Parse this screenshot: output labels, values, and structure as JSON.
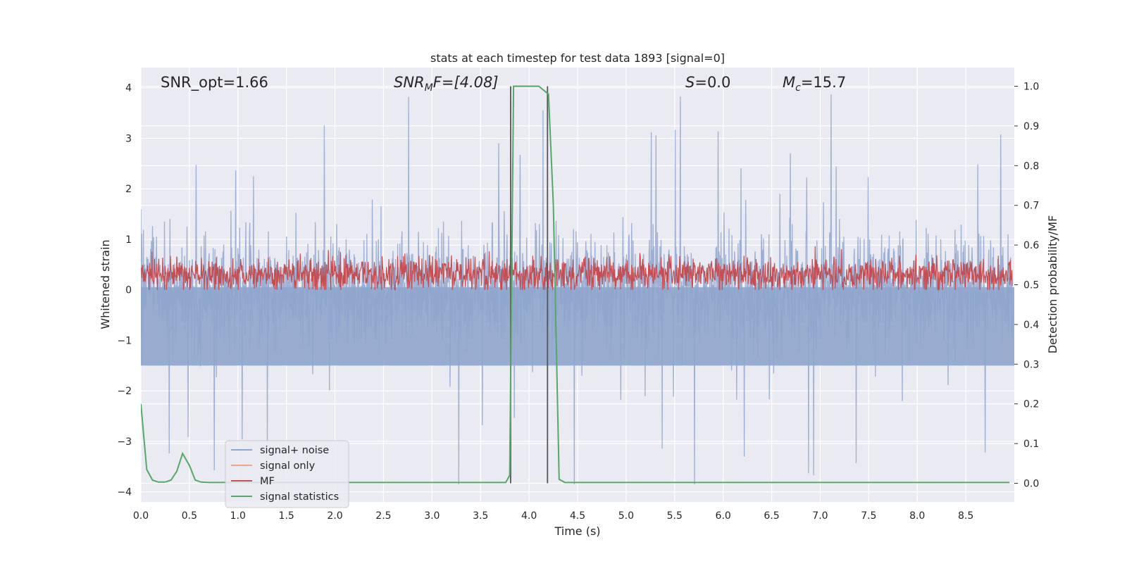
{
  "chart_data": {
    "type": "line",
    "title": "stats at each timestep for test data 1893 [signal=0]",
    "xlabel": "Time (s)",
    "ylabel_left": "Whitened strain",
    "ylabel_right": "Detection probability/MF",
    "xlim": [
      0.0,
      9.0
    ],
    "ylim_left": [
      -4.2,
      4.4
    ],
    "ylim_right": [
      -0.047,
      1.047
    ],
    "x_ticks": [
      "0.0",
      "0.5",
      "1.0",
      "1.5",
      "2.0",
      "2.5",
      "3.0",
      "3.5",
      "4.0",
      "4.5",
      "5.0",
      "5.5",
      "6.0",
      "6.5",
      "7.0",
      "7.5",
      "8.0",
      "8.5"
    ],
    "y_ticks_left": [
      "−4",
      "−3",
      "−2",
      "−1",
      "0",
      "1",
      "2",
      "3",
      "4"
    ],
    "y_ticks_right": [
      "0.0",
      "0.1",
      "0.2",
      "0.3",
      "0.4",
      "0.5",
      "0.6",
      "0.7",
      "0.8",
      "0.9",
      "1.0"
    ],
    "grid": true,
    "legend_placement": "lower-left",
    "annotations": {
      "snr_opt": "SNR_opt=1.66",
      "snr_mf_base": "SNR",
      "snr_mf_sub": "M",
      "snr_mf_rest": "F=[4.08]",
      "s_base": "S",
      "s_rest": "=0.0",
      "mc_base": "M",
      "mc_sub": "c",
      "mc_rest": "=15.7"
    },
    "series": [
      {
        "name": "signal+ noise",
        "color": "#8fa5cc",
        "axis": "left",
        "envelope": {
          "typical_max": 1.6,
          "typical_min": -1.5,
          "peak_max": 4.0,
          "peak_min": -3.85
        }
      },
      {
        "name": "signal only",
        "color": "#e8a98b",
        "axis": "left",
        "values": []
      },
      {
        "name": "MF",
        "color": "#c44e52",
        "axis": "left",
        "envelope": {
          "min": 0.0,
          "max": 0.9,
          "mean": 0.3
        }
      },
      {
        "name": "signal statistics",
        "color": "#55a868",
        "axis": "right",
        "x": [
          0.0,
          0.06,
          0.12,
          0.18,
          0.25,
          0.31,
          0.37,
          0.43,
          0.5,
          0.56,
          0.62,
          0.7,
          0.8,
          1.0,
          2.0,
          3.0,
          3.5,
          3.76,
          3.8,
          3.84,
          3.88,
          3.94,
          4.0,
          4.1,
          4.15,
          4.2,
          4.25,
          4.31,
          4.37,
          4.45,
          5.0,
          6.0,
          7.0,
          8.0,
          8.95
        ],
        "values": [
          0.2,
          0.035,
          0.008,
          0.003,
          0.003,
          0.008,
          0.03,
          0.075,
          0.045,
          0.008,
          0.003,
          0.002,
          0.002,
          0.002,
          0.002,
          0.002,
          0.002,
          0.002,
          0.02,
          1.0,
          1.0,
          1.0,
          1.0,
          1.0,
          0.99,
          0.98,
          0.7,
          0.01,
          0.002,
          0.002,
          0.002,
          0.002,
          0.002,
          0.002,
          0.002
        ]
      }
    ],
    "vertical_lines": {
      "color": "#555555",
      "x": [
        3.81,
        4.19
      ]
    }
  }
}
